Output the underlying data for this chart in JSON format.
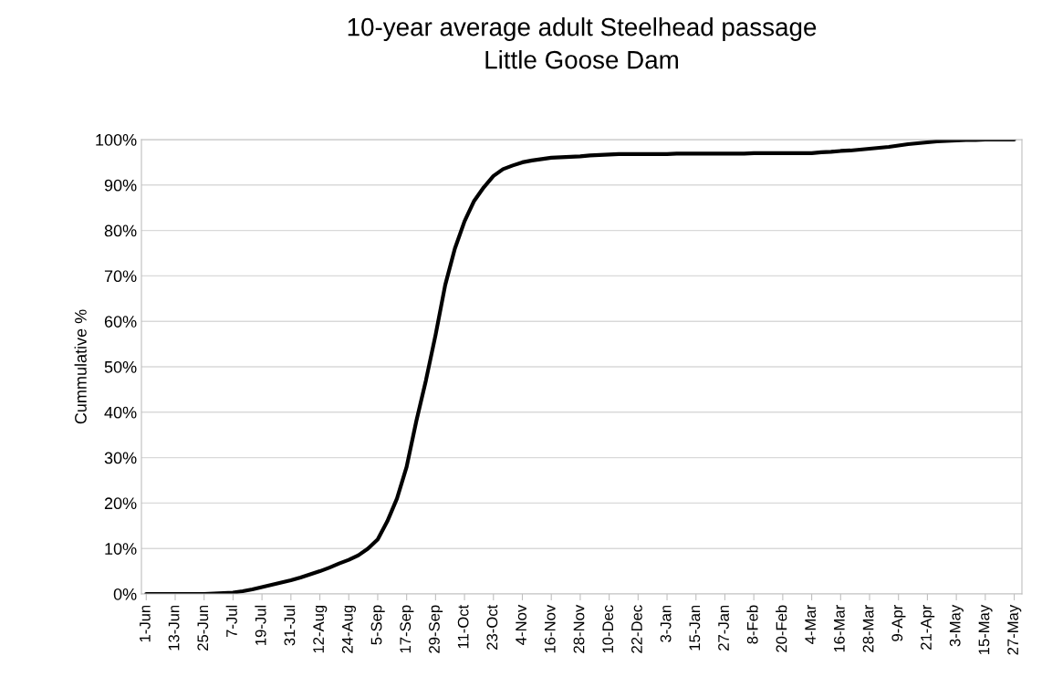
{
  "chart_data": {
    "type": "line",
    "title": "10-year average adult Steelhead passage\nLittle Goose Dam",
    "ylabel": "Cummulative %",
    "categories": [
      "1-Jun",
      null,
      null,
      "13-Jun",
      null,
      null,
      "25-Jun",
      null,
      null,
      "7-Jul",
      null,
      null,
      "19-Jul",
      null,
      null,
      "31-Jul",
      null,
      null,
      "12-Aug",
      null,
      null,
      "24-Aug",
      null,
      null,
      "5-Sep",
      null,
      null,
      "17-Sep",
      null,
      null,
      "29-Sep",
      null,
      null,
      "11-Oct",
      null,
      null,
      "23-Oct",
      null,
      null,
      "4-Nov",
      null,
      null,
      "16-Nov",
      null,
      null,
      "28-Nov",
      null,
      null,
      "10-Dec",
      null,
      null,
      "22-Dec",
      null,
      null,
      "3-Jan",
      null,
      null,
      "15-Jan",
      null,
      null,
      "27-Jan",
      null,
      null,
      "8-Feb",
      null,
      null,
      "20-Feb",
      null,
      null,
      "4-Mar",
      null,
      null,
      "16-Mar",
      null,
      null,
      "28-Mar",
      null,
      null,
      "9-Apr",
      null,
      null,
      "21-Apr",
      null,
      null,
      "3-May",
      null,
      null,
      "15-May",
      null,
      null,
      "27-May"
    ],
    "series": [
      {
        "color": "#000000",
        "values": [
          0,
          0,
          0,
          0,
          0,
          0,
          0,
          0.1,
          0.2,
          0.3,
          0.6,
          1.0,
          1.5,
          2,
          2.5,
          3,
          3.6,
          4.3,
          5,
          5.8,
          6.7,
          7.5,
          8.5,
          10,
          12,
          16,
          21,
          28,
          38,
          47,
          57,
          68,
          76,
          82,
          86.5,
          89.5,
          92,
          93.5,
          94.3,
          95,
          95.4,
          95.7,
          96,
          96.1,
          96.2,
          96.3,
          96.5,
          96.6,
          96.7,
          96.8,
          96.8,
          96.8,
          96.8,
          96.8,
          96.8,
          96.9,
          96.9,
          96.9,
          96.9,
          96.9,
          96.9,
          96.9,
          96.9,
          97,
          97,
          97,
          97,
          97,
          97,
          97,
          97.2,
          97.3,
          97.5,
          97.6,
          97.8,
          98,
          98.2,
          98.4,
          98.7,
          99,
          99.2,
          99.4,
          99.6,
          99.7,
          99.8,
          99.9,
          99.9,
          100,
          100,
          100,
          100
        ]
      }
    ],
    "ylim": [
      0,
      100
    ],
    "yticks": [
      {
        "value": 0,
        "label": "0%"
      },
      {
        "value": 10,
        "label": "10%"
      },
      {
        "value": 20,
        "label": "20%"
      },
      {
        "value": 30,
        "label": "30%"
      },
      {
        "value": 40,
        "label": "40%"
      },
      {
        "value": 50,
        "label": "50%"
      },
      {
        "value": 60,
        "label": "60%"
      },
      {
        "value": 70,
        "label": "70%"
      },
      {
        "value": 80,
        "label": "80%"
      },
      {
        "value": 90,
        "label": "90%"
      },
      {
        "value": 100,
        "label": "100%"
      }
    ],
    "grid": "y",
    "line_style": "solid"
  }
}
